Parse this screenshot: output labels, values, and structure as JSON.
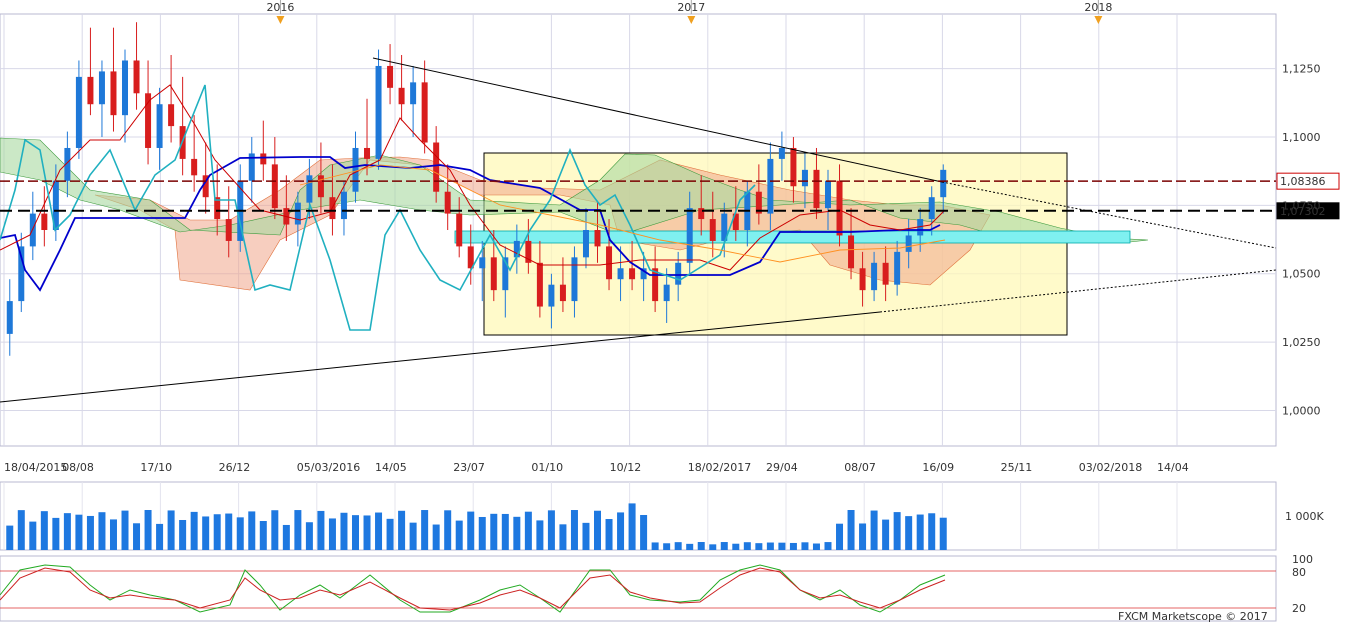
{
  "chart_data": {
    "type": "candlestick",
    "instrument_panel": {
      "years": [
        {
          "label": "2016",
          "frac": 0.219
        },
        {
          "label": "2017",
          "frac": 0.541
        },
        {
          "label": "2018",
          "frac": 0.86
        }
      ],
      "x_ticks": [
        "18/04/2015",
        "08/08",
        "17/10",
        "26/12",
        "05/03/2016",
        "14/05",
        "23/07",
        "01/10",
        "10/12",
        "18/02/2017",
        "29/04",
        "08/07",
        "16/09",
        "25/11",
        "03/02/2018",
        "14/04"
      ],
      "y_ticks": [
        "1,1250",
        "1,1000",
        "1,0750",
        "1,0500",
        "1,0250",
        "1,0000"
      ],
      "y_tick_values": [
        1.125,
        1.1,
        1.075,
        1.05,
        1.025,
        1.0
      ],
      "ylim": [
        0.987,
        1.145
      ],
      "price_labels": [
        {
          "label": "1,08386",
          "value": 1.08386,
          "color": "#cc0000"
        },
        {
          "label": "1,07302",
          "value": 1.07302,
          "color": "#000000"
        }
      ],
      "candles": [
        [
          1.028,
          1.048,
          1.02,
          1.04
        ],
        [
          1.04,
          1.065,
          1.036,
          1.06
        ],
        [
          1.06,
          1.08,
          1.055,
          1.072
        ],
        [
          1.072,
          1.082,
          1.06,
          1.066
        ],
        [
          1.066,
          1.09,
          1.062,
          1.084
        ],
        [
          1.084,
          1.102,
          1.078,
          1.096
        ],
        [
          1.096,
          1.128,
          1.092,
          1.122
        ],
        [
          1.122,
          1.14,
          1.108,
          1.112
        ],
        [
          1.112,
          1.128,
          1.1,
          1.124
        ],
        [
          1.124,
          1.14,
          1.102,
          1.108
        ],
        [
          1.108,
          1.132,
          1.098,
          1.128
        ],
        [
          1.128,
          1.142,
          1.11,
          1.116
        ],
        [
          1.116,
          1.128,
          1.09,
          1.096
        ],
        [
          1.096,
          1.118,
          1.088,
          1.112
        ],
        [
          1.112,
          1.13,
          1.098,
          1.104
        ],
        [
          1.104,
          1.122,
          1.086,
          1.092
        ],
        [
          1.092,
          1.108,
          1.08,
          1.086
        ],
        [
          1.086,
          1.098,
          1.072,
          1.078
        ],
        [
          1.078,
          1.09,
          1.064,
          1.07
        ],
        [
          1.07,
          1.082,
          1.056,
          1.062
        ],
        [
          1.062,
          1.09,
          1.058,
          1.084
        ],
        [
          1.084,
          1.1,
          1.076,
          1.094
        ],
        [
          1.094,
          1.106,
          1.084,
          1.09
        ],
        [
          1.09,
          1.1,
          1.07,
          1.074
        ],
        [
          1.074,
          1.086,
          1.062,
          1.068
        ],
        [
          1.068,
          1.08,
          1.06,
          1.076
        ],
        [
          1.076,
          1.092,
          1.07,
          1.086
        ],
        [
          1.086,
          1.098,
          1.072,
          1.078
        ],
        [
          1.078,
          1.09,
          1.064,
          1.07
        ],
        [
          1.07,
          1.084,
          1.064,
          1.08
        ],
        [
          1.08,
          1.102,
          1.076,
          1.096
        ],
        [
          1.096,
          1.114,
          1.086,
          1.092
        ],
        [
          1.092,
          1.132,
          1.088,
          1.126
        ],
        [
          1.126,
          1.134,
          1.112,
          1.118
        ],
        [
          1.118,
          1.13,
          1.106,
          1.112
        ],
        [
          1.112,
          1.126,
          1.1,
          1.12
        ],
        [
          1.12,
          1.128,
          1.094,
          1.098
        ],
        [
          1.098,
          1.104,
          1.076,
          1.08
        ],
        [
          1.08,
          1.09,
          1.066,
          1.072
        ],
        [
          1.072,
          1.078,
          1.056,
          1.06
        ],
        [
          1.06,
          1.068,
          1.046,
          1.052
        ],
        [
          1.052,
          1.062,
          1.04,
          1.056
        ],
        [
          1.056,
          1.066,
          1.04,
          1.044
        ],
        [
          1.044,
          1.06,
          1.034,
          1.056
        ],
        [
          1.056,
          1.068,
          1.05,
          1.062
        ],
        [
          1.062,
          1.07,
          1.05,
          1.054
        ],
        [
          1.054,
          1.062,
          1.034,
          1.038
        ],
        [
          1.038,
          1.05,
          1.03,
          1.046
        ],
        [
          1.046,
          1.056,
          1.036,
          1.04
        ],
        [
          1.04,
          1.06,
          1.034,
          1.056
        ],
        [
          1.056,
          1.074,
          1.052,
          1.066
        ],
        [
          1.066,
          1.076,
          1.054,
          1.06
        ],
        [
          1.06,
          1.07,
          1.044,
          1.048
        ],
        [
          1.048,
          1.06,
          1.04,
          1.052
        ],
        [
          1.052,
          1.062,
          1.044,
          1.048
        ],
        [
          1.048,
          1.058,
          1.04,
          1.052
        ],
        [
          1.052,
          1.06,
          1.036,
          1.04
        ],
        [
          1.04,
          1.052,
          1.032,
          1.046
        ],
        [
          1.046,
          1.058,
          1.04,
          1.054
        ],
        [
          1.054,
          1.08,
          1.05,
          1.074
        ],
        [
          1.074,
          1.086,
          1.064,
          1.07
        ],
        [
          1.07,
          1.08,
          1.056,
          1.062
        ],
        [
          1.062,
          1.076,
          1.056,
          1.072
        ],
        [
          1.072,
          1.082,
          1.062,
          1.066
        ],
        [
          1.066,
          1.084,
          1.06,
          1.08
        ],
        [
          1.08,
          1.09,
          1.068,
          1.072
        ],
        [
          1.072,
          1.098,
          1.066,
          1.092
        ],
        [
          1.092,
          1.102,
          1.084,
          1.096
        ],
        [
          1.096,
          1.1,
          1.076,
          1.082
        ],
        [
          1.082,
          1.094,
          1.074,
          1.088
        ],
        [
          1.088,
          1.096,
          1.07,
          1.074
        ],
        [
          1.074,
          1.088,
          1.066,
          1.084
        ],
        [
          1.084,
          1.09,
          1.06,
          1.064
        ],
        [
          1.064,
          1.074,
          1.048,
          1.052
        ],
        [
          1.052,
          1.058,
          1.038,
          1.044
        ],
        [
          1.044,
          1.058,
          1.04,
          1.054
        ],
        [
          1.054,
          1.06,
          1.04,
          1.046
        ],
        [
          1.046,
          1.062,
          1.042,
          1.058
        ],
        [
          1.058,
          1.07,
          1.052,
          1.064
        ],
        [
          1.064,
          1.074,
          1.058,
          1.07
        ],
        [
          1.07,
          1.082,
          1.064,
          1.078
        ],
        [
          1.078,
          1.09,
          1.072,
          1.088
        ]
      ],
      "volume_label": "1 000K",
      "stochastic_labels": {
        "top": "100",
        "upper": "80",
        "lower": "20"
      },
      "watermark": "FXCM Marketscope © 2017"
    }
  }
}
